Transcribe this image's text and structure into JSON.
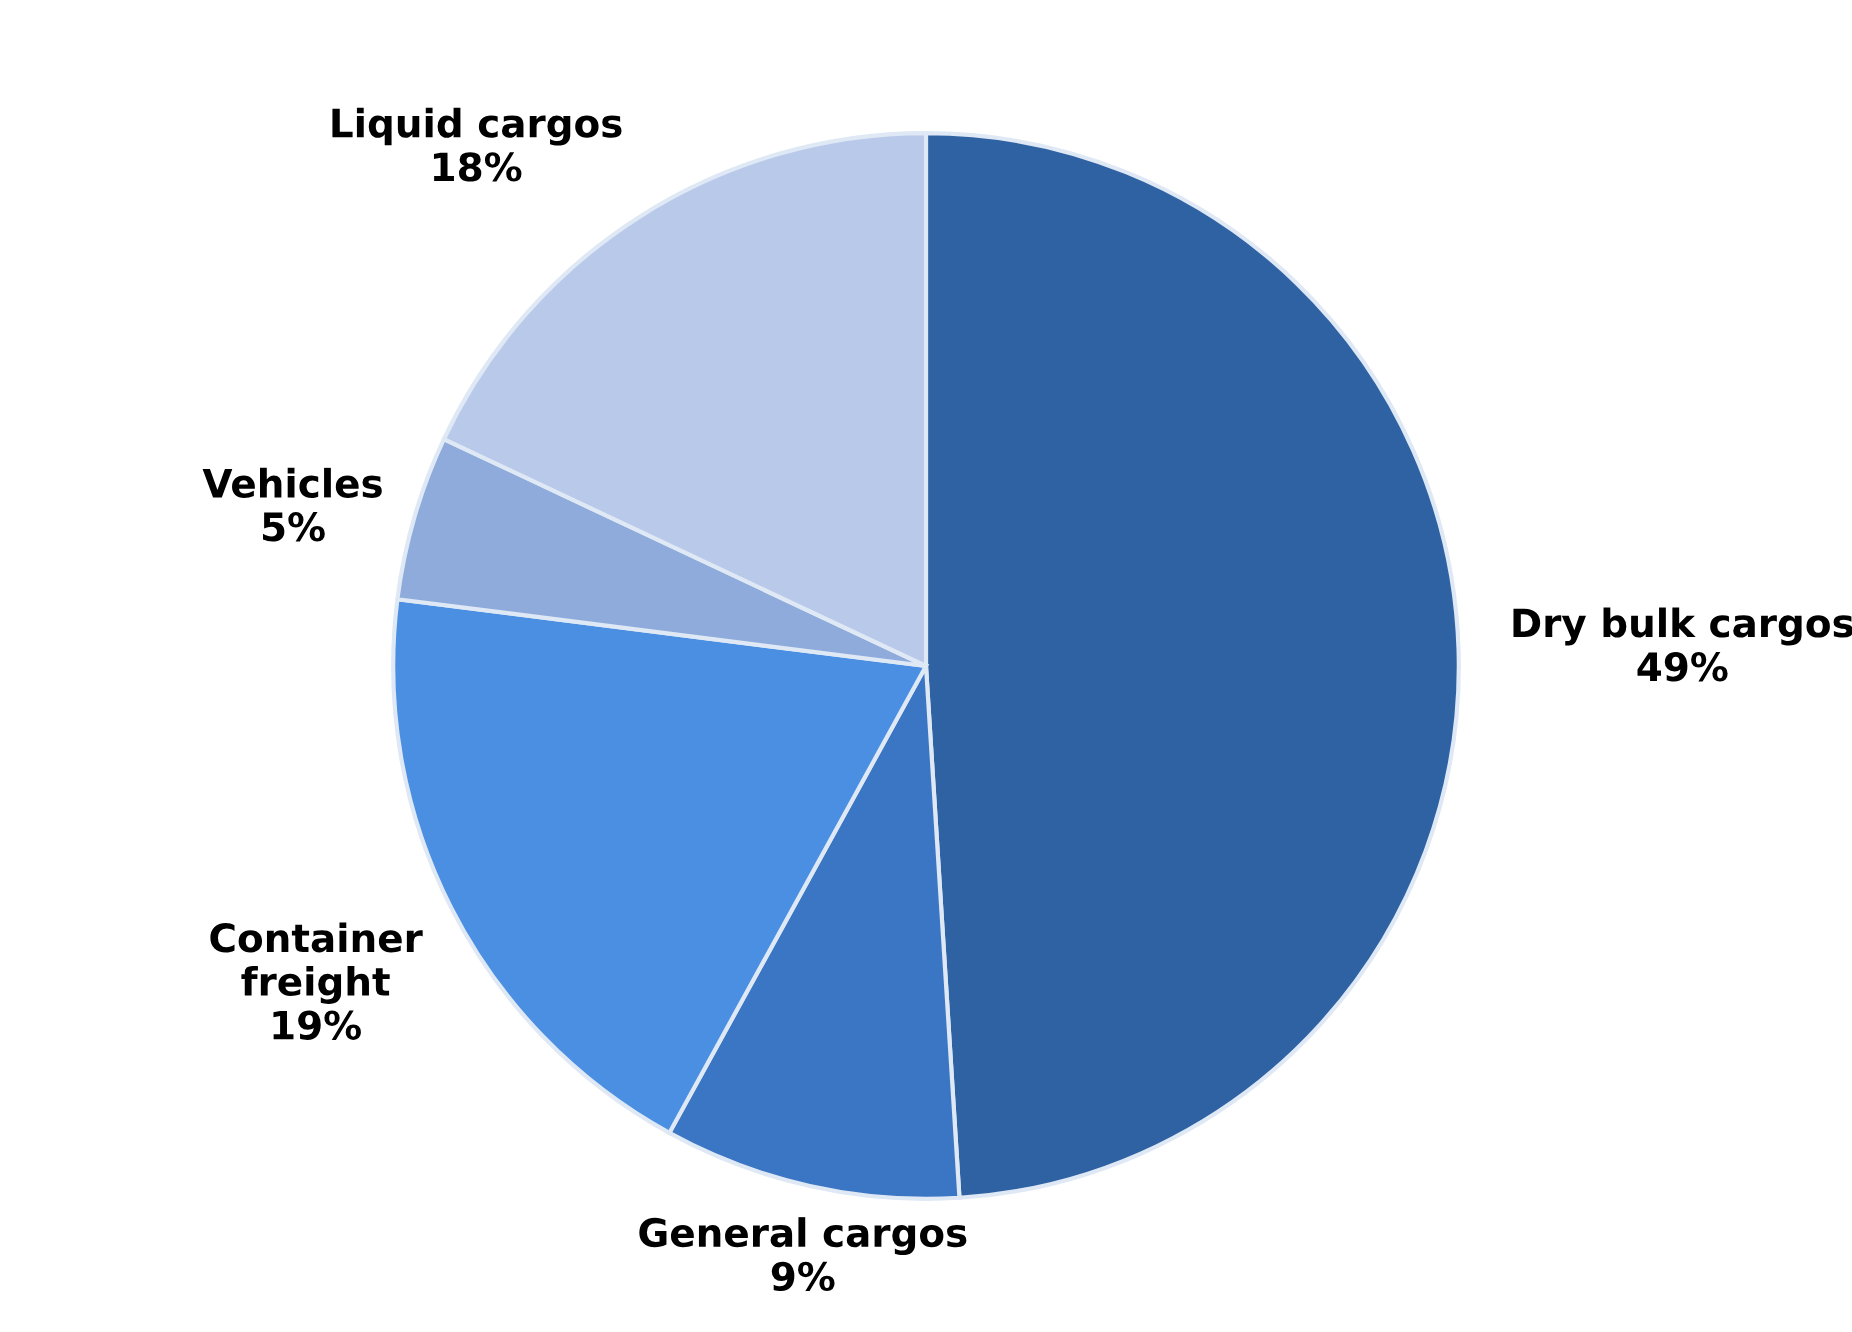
{
  "chart_data": {
    "type": "pie",
    "categories": [
      "Dry bulk cargos",
      "General cargos",
      "Container\nfreight",
      "Vehicles",
      "Liquid cargos"
    ],
    "values": [
      49,
      9,
      19,
      5,
      18
    ],
    "value_labels": [
      "49%",
      "9%",
      "19%",
      "5%",
      "18%"
    ],
    "colors": [
      "#2f62a3",
      "#3b76c4",
      "#4b8fe2",
      "#8eabdb",
      "#b9c9ea"
    ]
  }
}
